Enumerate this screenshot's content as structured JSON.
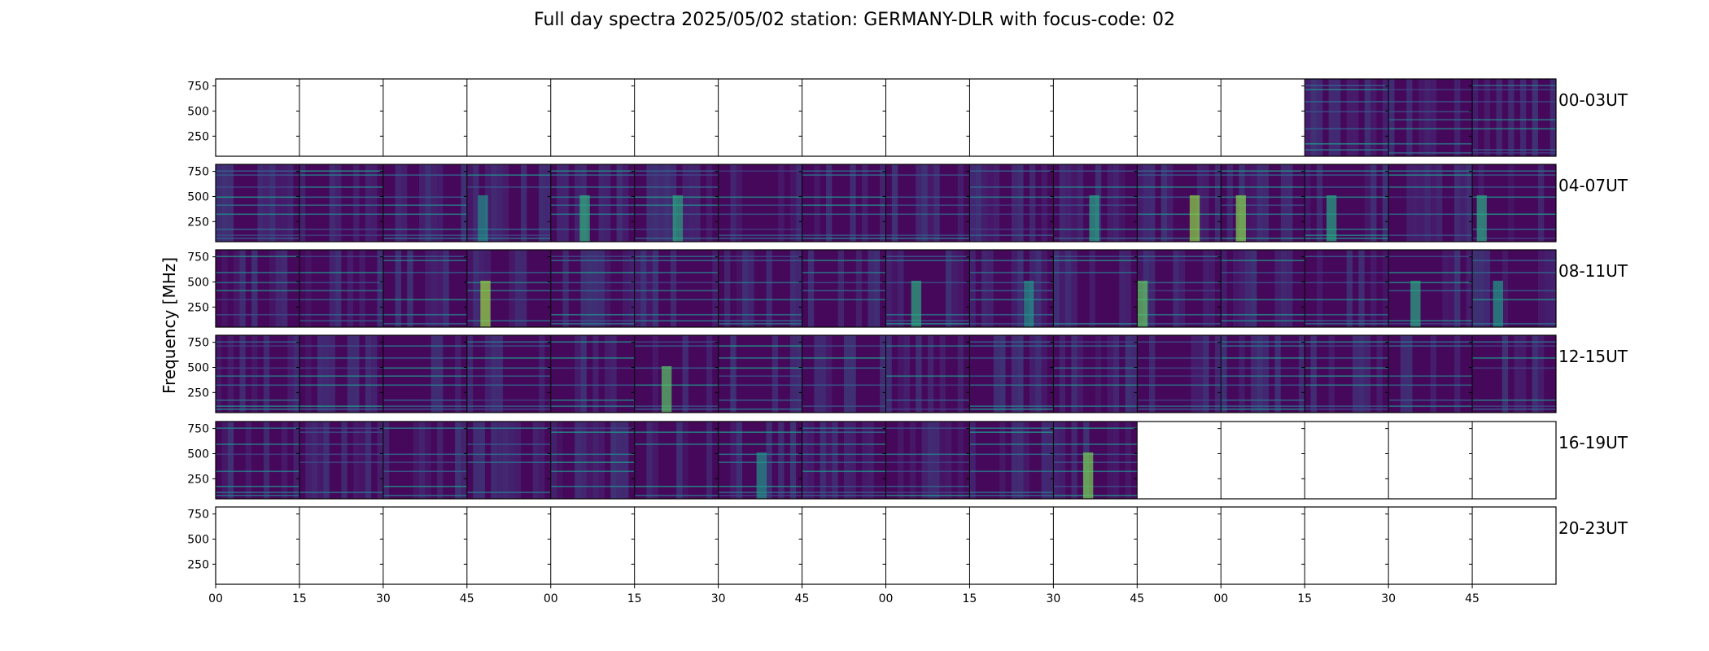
{
  "title": "Full day spectra 2025/05/02 station: GERMANY-DLR with focus-code: 02",
  "chart_data": {
    "type": "heatmap",
    "title": "Full day spectra 2025/05/02 station: GERMANY-DLR with focus-code: 02",
    "ylabel": "Frequency [MHz]",
    "xlabel": "",
    "y_ticks": [
      "750",
      "500",
      "250"
    ],
    "x_ticks": [
      "00",
      "15",
      "30",
      "45",
      "00",
      "15",
      "30",
      "45",
      "00",
      "15",
      "30",
      "45",
      "00",
      "15",
      "30",
      "45"
    ],
    "colormap": "viridis",
    "rows": [
      {
        "label": "00-03UT",
        "panels": [
          0,
          0,
          0,
          0,
          0,
          0,
          0,
          0,
          0,
          0,
          0,
          0,
          0,
          1,
          1,
          1
        ]
      },
      {
        "label": "04-07UT",
        "panels": [
          1,
          1,
          1,
          1,
          1,
          1,
          1,
          1,
          1,
          1,
          1,
          1,
          1,
          1,
          1,
          1
        ]
      },
      {
        "label": "08-11UT",
        "panels": [
          1,
          1,
          1,
          1,
          1,
          1,
          1,
          1,
          1,
          1,
          1,
          1,
          1,
          1,
          1,
          1
        ]
      },
      {
        "label": "12-15UT",
        "panels": [
          1,
          1,
          1,
          1,
          1,
          1,
          1,
          1,
          1,
          1,
          1,
          1,
          1,
          1,
          1,
          1
        ]
      },
      {
        "label": "16-19UT",
        "panels": [
          1,
          1,
          1,
          1,
          1,
          1,
          1,
          1,
          1,
          1,
          1,
          0,
          0,
          0,
          0,
          0
        ]
      },
      {
        "label": "20-23UT",
        "panels": [
          0,
          0,
          0,
          0,
          0,
          0,
          0,
          0,
          0,
          0,
          0,
          0,
          0,
          0,
          0,
          0
        ]
      }
    ]
  }
}
